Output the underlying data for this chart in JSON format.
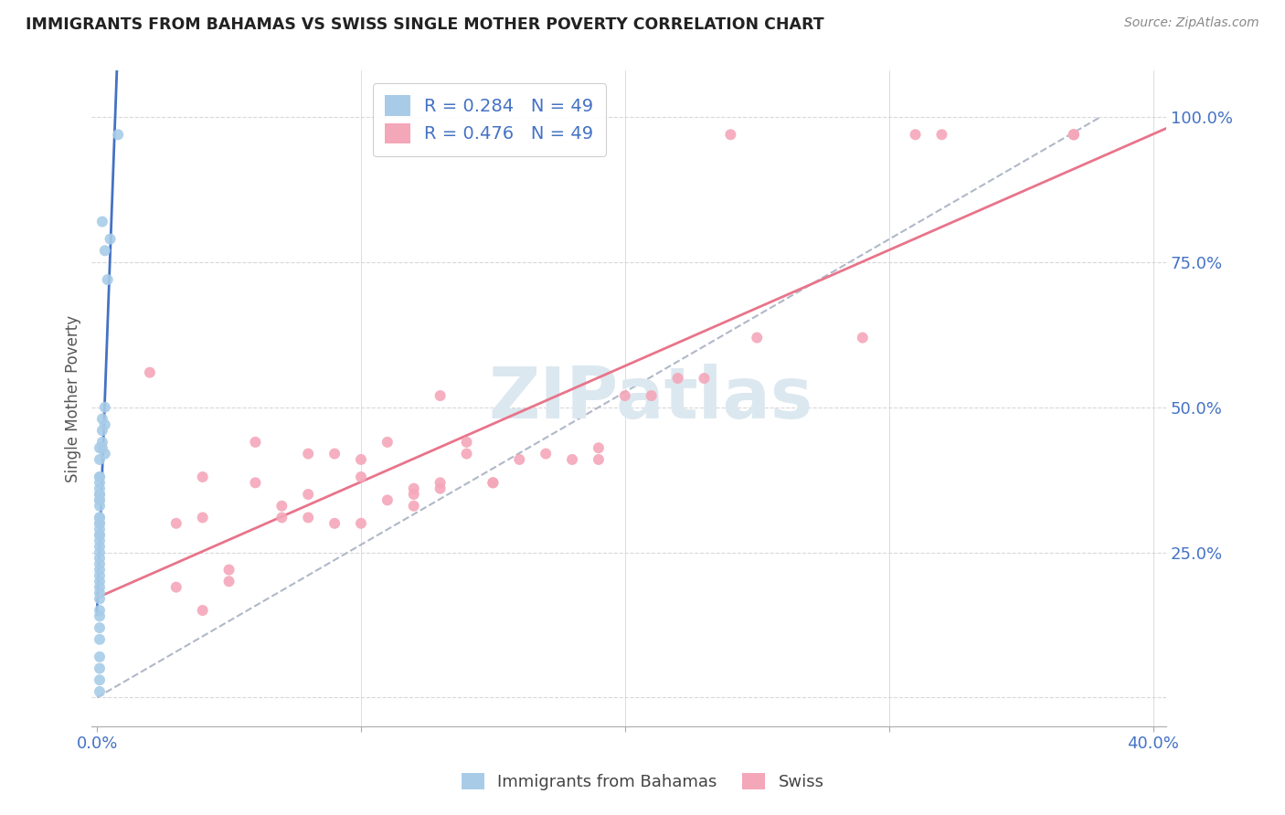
{
  "title": "IMMIGRANTS FROM BAHAMAS VS SWISS SINGLE MOTHER POVERTY CORRELATION CHART",
  "source": "Source: ZipAtlas.com",
  "ylabel": "Single Mother Poverty",
  "r_bahamas": 0.284,
  "n_bahamas": 49,
  "r_swiss": 0.476,
  "n_swiss": 49,
  "bahamas_color": "#a8cce8",
  "swiss_color": "#f4a7b9",
  "trendline_bahamas_color": "#4472c4",
  "trendline_swiss_color": "#e8748a",
  "dashed_line_color": "#b0b8c8",
  "watermark_color": "#dce8f0",
  "tick_label_color": "#4472c4",
  "title_color": "#222222",
  "source_color": "#888888",
  "ylabel_color": "#555555",
  "bahamas_x": [
    0.008,
    0.002,
    0.005,
    0.003,
    0.004,
    0.003,
    0.003,
    0.002,
    0.002,
    0.002,
    0.003,
    0.002,
    0.001,
    0.001,
    0.001,
    0.001,
    0.001,
    0.001,
    0.001,
    0.001,
    0.001,
    0.001,
    0.001,
    0.001,
    0.001,
    0.001,
    0.001,
    0.001,
    0.001,
    0.001,
    0.001,
    0.001,
    0.001,
    0.001,
    0.001,
    0.001,
    0.001,
    0.001,
    0.001,
    0.001,
    0.001,
    0.001,
    0.001,
    0.001,
    0.001,
    0.001,
    0.001,
    0.001,
    0.001
  ],
  "bahamas_y": [
    0.97,
    0.82,
    0.79,
    0.77,
    0.72,
    0.5,
    0.47,
    0.48,
    0.46,
    0.43,
    0.42,
    0.44,
    0.41,
    0.43,
    0.38,
    0.38,
    0.37,
    0.36,
    0.35,
    0.35,
    0.34,
    0.34,
    0.33,
    0.31,
    0.31,
    0.3,
    0.3,
    0.29,
    0.28,
    0.28,
    0.27,
    0.26,
    0.25,
    0.24,
    0.23,
    0.22,
    0.21,
    0.2,
    0.19,
    0.18,
    0.17,
    0.15,
    0.14,
    0.12,
    0.1,
    0.07,
    0.05,
    0.03,
    0.01
  ],
  "swiss_x": [
    0.13,
    0.14,
    0.14,
    0.18,
    0.09,
    0.12,
    0.1,
    0.1,
    0.1,
    0.09,
    0.08,
    0.07,
    0.07,
    0.08,
    0.08,
    0.06,
    0.05,
    0.06,
    0.05,
    0.04,
    0.04,
    0.04,
    0.03,
    0.03,
    0.25,
    0.23,
    0.11,
    0.11,
    0.12,
    0.12,
    0.13,
    0.13,
    0.15,
    0.15,
    0.16,
    0.17,
    0.19,
    0.19,
    0.2,
    0.21,
    0.22,
    0.24,
    0.29,
    0.31,
    0.32,
    0.37,
    0.37,
    0.37,
    0.02
  ],
  "swiss_y": [
    0.52,
    0.44,
    0.42,
    0.41,
    0.42,
    0.35,
    0.41,
    0.38,
    0.3,
    0.3,
    0.42,
    0.33,
    0.31,
    0.35,
    0.31,
    0.44,
    0.22,
    0.37,
    0.2,
    0.38,
    0.31,
    0.15,
    0.3,
    0.19,
    0.62,
    0.55,
    0.44,
    0.34,
    0.36,
    0.33,
    0.37,
    0.36,
    0.37,
    0.37,
    0.41,
    0.42,
    0.43,
    0.41,
    0.52,
    0.52,
    0.55,
    0.97,
    0.62,
    0.97,
    0.97,
    0.97,
    0.97,
    0.97,
    0.56
  ],
  "xlim": [
    -0.002,
    0.405
  ],
  "ylim": [
    -0.05,
    1.08
  ],
  "x_ticks": [
    0.0,
    0.1,
    0.2,
    0.3,
    0.4
  ],
  "y_ticks": [
    0.0,
    0.25,
    0.5,
    0.75,
    1.0
  ]
}
